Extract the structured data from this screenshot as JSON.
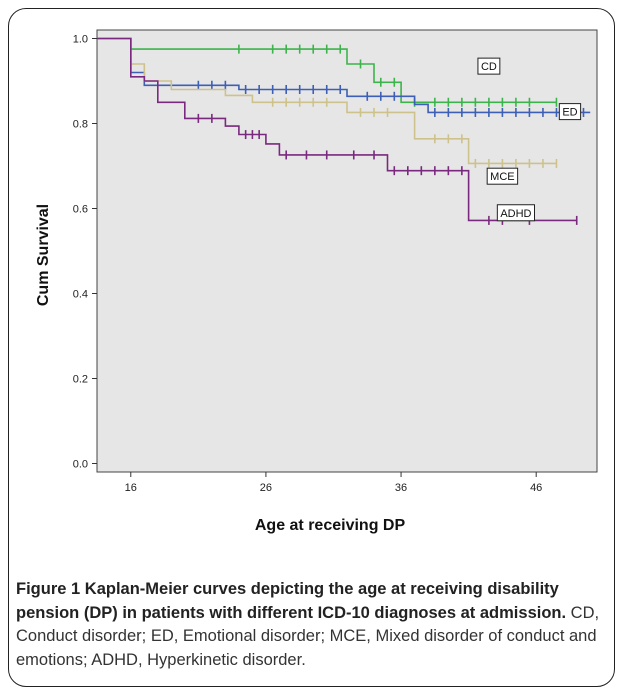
{
  "caption": {
    "label": "Figure 1",
    "title": "Kaplan-Meier curves depicting the age at receiving disability pension (DP) in patients with different ICD-10 diagnoses at admission.",
    "body": "CD, Conduct disorder; ED, Emotional disorder; MCE, Mixed disorder of conduct and emotions; ADHD, Hyperkinetic disorder."
  },
  "colors": {
    "plot_background": "#e6e6e6",
    "CD": "#3cb44b",
    "ED": "#3d5fb5",
    "MCE": "#cdc28c",
    "ADHD": "#7a2a7e"
  },
  "chart_data": {
    "type": "line",
    "step": true,
    "xlabel": "Age at receiving DP",
    "ylabel": "Cum Survival",
    "xlim": [
      13.5,
      50.5
    ],
    "ylim": [
      -0.02,
      1.02
    ],
    "x_ticks": [
      16,
      26,
      36,
      46
    ],
    "y_ticks": [
      0.0,
      0.2,
      0.4,
      0.6,
      0.8,
      1.0
    ],
    "y_tick_labels": [
      "0.0",
      "0.2",
      "0.4",
      "0.6",
      "0.8",
      "1.0"
    ],
    "grid": false,
    "series": [
      {
        "name": "CD",
        "points": [
          [
            13.5,
            1.0
          ],
          [
            16,
            1.0
          ],
          [
            16,
            0.975
          ],
          [
            32,
            0.975
          ],
          [
            32,
            0.94
          ],
          [
            34,
            0.94
          ],
          [
            34,
            0.897
          ],
          [
            36,
            0.897
          ],
          [
            36,
            0.85
          ],
          [
            47.5,
            0.85
          ]
        ],
        "censor_x": [
          24,
          26.5,
          27.5,
          28.5,
          29.5,
          30.5,
          31.5,
          33,
          34.5,
          35.5,
          37,
          38.5,
          39.5,
          40.5,
          41.5,
          42.5,
          43.5,
          44.5,
          45.5,
          47.5
        ]
      },
      {
        "name": "ED",
        "points": [
          [
            13.5,
            1.0
          ],
          [
            16,
            1.0
          ],
          [
            16,
            0.92
          ],
          [
            17,
            0.92
          ],
          [
            17,
            0.89
          ],
          [
            24,
            0.89
          ],
          [
            24,
            0.88
          ],
          [
            32,
            0.88
          ],
          [
            32,
            0.864
          ],
          [
            37,
            0.864
          ],
          [
            37,
            0.845
          ],
          [
            38,
            0.845
          ],
          [
            38,
            0.826
          ],
          [
            50,
            0.826
          ]
        ],
        "censor_x": [
          21,
          22,
          23,
          24.5,
          25.5,
          26.5,
          27.5,
          28.5,
          29.5,
          30.5,
          31.5,
          33.5,
          34.5,
          35.5,
          38.5,
          39.5,
          40.5,
          41.5,
          42.5,
          43.5,
          44.5,
          45.5,
          46.5,
          47.5,
          48.5,
          49.5
        ]
      },
      {
        "name": "MCE",
        "points": [
          [
            13.5,
            1.0
          ],
          [
            16,
            1.0
          ],
          [
            16,
            0.94
          ],
          [
            17,
            0.94
          ],
          [
            17,
            0.9
          ],
          [
            19,
            0.9
          ],
          [
            19,
            0.88
          ],
          [
            23,
            0.88
          ],
          [
            23,
            0.866
          ],
          [
            25,
            0.866
          ],
          [
            25,
            0.85
          ],
          [
            32,
            0.85
          ],
          [
            32,
            0.826
          ],
          [
            37,
            0.826
          ],
          [
            37,
            0.764
          ],
          [
            41,
            0.764
          ],
          [
            41,
            0.706
          ],
          [
            47.5,
            0.706
          ]
        ],
        "censor_x": [
          26.5,
          27.5,
          28.5,
          29.5,
          30.5,
          33,
          34,
          35,
          38.5,
          39.5,
          40.5,
          41.5,
          42.5,
          43.5,
          44.5,
          45.5,
          46.5,
          47.5
        ]
      },
      {
        "name": "ADHD",
        "points": [
          [
            13.5,
            1.0
          ],
          [
            16,
            1.0
          ],
          [
            16,
            0.91
          ],
          [
            17,
            0.91
          ],
          [
            17,
            0.9
          ],
          [
            18,
            0.9
          ],
          [
            18,
            0.85
          ],
          [
            20,
            0.85
          ],
          [
            20,
            0.812
          ],
          [
            23,
            0.812
          ],
          [
            23,
            0.794
          ],
          [
            24,
            0.794
          ],
          [
            24,
            0.774
          ],
          [
            26,
            0.774
          ],
          [
            26,
            0.752
          ],
          [
            27,
            0.752
          ],
          [
            27,
            0.726
          ],
          [
            35,
            0.726
          ],
          [
            35,
            0.689
          ],
          [
            41,
            0.689
          ],
          [
            41,
            0.572
          ],
          [
            49,
            0.572
          ]
        ],
        "censor_x": [
          21,
          22,
          24.5,
          25,
          25.5,
          27.5,
          29,
          30.5,
          32.5,
          34,
          35.5,
          36.5,
          37.5,
          38.5,
          39.5,
          40.5,
          42.5,
          43.5,
          45.5,
          49
        ]
      }
    ],
    "annotations": [
      {
        "text": "CD",
        "x": 42.5,
        "y": 0.935
      },
      {
        "text": "ED",
        "x": 48.5,
        "y": 0.828
      },
      {
        "text": "MCE",
        "x": 43.5,
        "y": 0.676
      },
      {
        "text": "ADHD",
        "x": 44.5,
        "y": 0.59
      }
    ]
  }
}
